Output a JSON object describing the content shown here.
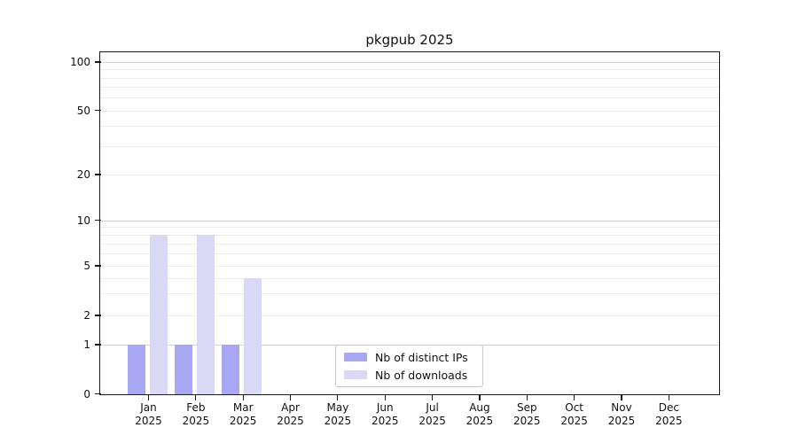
{
  "chart_data": {
    "type": "bar",
    "title": "pkgpub 2025",
    "categories": [
      "Jan",
      "Feb",
      "Mar",
      "Apr",
      "May",
      "Jun",
      "Jul",
      "Aug",
      "Sep",
      "Oct",
      "Nov",
      "Dec"
    ],
    "year_label": "2025",
    "series": [
      {
        "name": "Nb of distinct IPs",
        "color": "#a8a8f2",
        "values": [
          1,
          1,
          1,
          0,
          0,
          0,
          0,
          0,
          0,
          0,
          0,
          0
        ]
      },
      {
        "name": "Nb of downloads",
        "color": "#d9d9f6",
        "values": [
          8,
          8,
          4,
          0,
          0,
          0,
          0,
          0,
          0,
          0,
          0,
          0
        ]
      }
    ],
    "xlabel": "",
    "ylabel": "",
    "yscale": "log-like with linear 0-1 segment (0 baseline shown)",
    "ylim": [
      0,
      115
    ],
    "yticks": [
      0,
      1,
      2,
      5,
      10,
      20,
      50,
      100
    ],
    "major_gridlines": [
      1,
      10,
      100
    ],
    "minor_gridlines": [
      3,
      4,
      6,
      7,
      8,
      9,
      30,
      40,
      60,
      70,
      80,
      90
    ],
    "grid": true,
    "legend_position": "lower center",
    "palette": {
      "spine": "#1a1a1a",
      "major_grid": "#d0d0d0",
      "minor_grid": "#ececec",
      "text": "#111111",
      "legend_border": "#c8c8c8",
      "background": "#ffffff"
    }
  }
}
